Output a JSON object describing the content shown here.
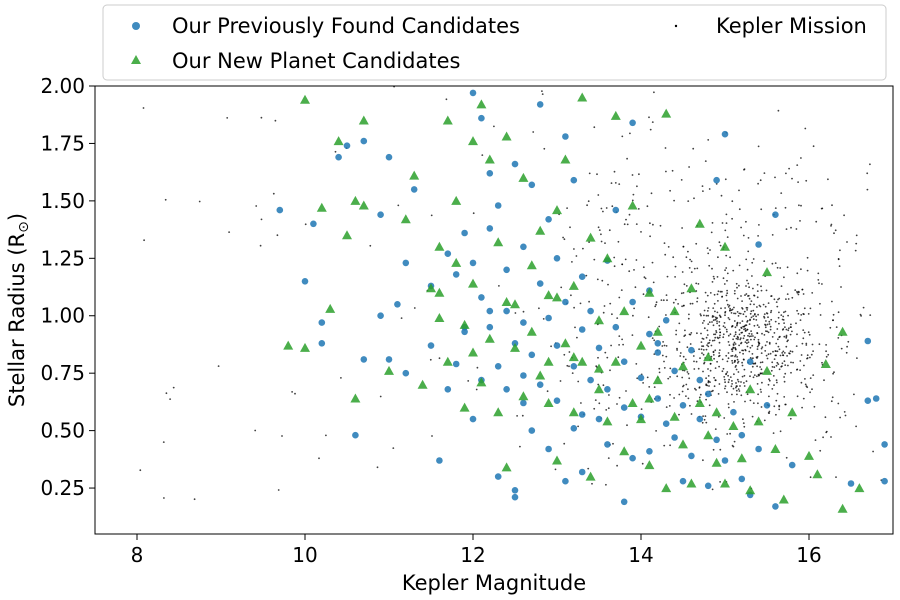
{
  "chart_data": {
    "type": "scatter",
    "xlabel": "Kepler Magnitude",
    "ylabel": "Stellar Radius (R",
    "ylabel_symbol": "⊙",
    "ylabel_close": ")",
    "xlim": [
      7.5,
      17
    ],
    "ylim": [
      0.05,
      2.0
    ],
    "xticks": [
      8,
      10,
      12,
      14,
      16
    ],
    "yticks": [
      0.25,
      0.5,
      0.75,
      1.0,
      1.25,
      1.5,
      1.75,
      2.0
    ],
    "ytick_labels": [
      "0.25",
      "0.50",
      "0.75",
      "1.00",
      "1.25",
      "1.50",
      "1.75",
      "2.00"
    ],
    "legend_position": "top",
    "series": [
      {
        "name": "Our Previously Found Candidates",
        "marker": "circle",
        "color": "#1f77b4",
        "points": [
          [
            9.7,
            1.46
          ],
          [
            10.0,
            1.15
          ],
          [
            10.1,
            1.4
          ],
          [
            10.2,
            0.97
          ],
          [
            10.2,
            0.88
          ],
          [
            10.4,
            1.69
          ],
          [
            10.5,
            1.74
          ],
          [
            10.6,
            0.48
          ],
          [
            10.7,
            0.81
          ],
          [
            10.7,
            1.76
          ],
          [
            10.9,
            1.44
          ],
          [
            10.9,
            1.0
          ],
          [
            11.0,
            0.81
          ],
          [
            11.0,
            1.69
          ],
          [
            11.1,
            1.05
          ],
          [
            11.2,
            1.23
          ],
          [
            11.2,
            0.75
          ],
          [
            11.3,
            1.55
          ],
          [
            11.5,
            1.13
          ],
          [
            11.5,
            0.87
          ],
          [
            11.6,
            0.37
          ],
          [
            11.7,
            1.27
          ],
          [
            11.7,
            0.68
          ],
          [
            11.8,
            1.18
          ],
          [
            11.8,
            0.79
          ],
          [
            11.9,
            0.93
          ],
          [
            11.9,
            1.36
          ],
          [
            12.0,
            1.97
          ],
          [
            12.0,
            1.23
          ],
          [
            12.0,
            0.55
          ],
          [
            12.1,
            1.86
          ],
          [
            12.1,
            1.08
          ],
          [
            12.1,
            0.72
          ],
          [
            12.2,
            1.62
          ],
          [
            12.2,
            1.38
          ],
          [
            12.2,
            0.95
          ],
          [
            12.3,
            0.3
          ],
          [
            12.3,
            0.78
          ],
          [
            12.3,
            1.48
          ],
          [
            12.4,
            1.2
          ],
          [
            12.4,
            0.68
          ],
          [
            12.4,
            1.02
          ],
          [
            12.5,
            0.24
          ],
          [
            12.5,
            1.66
          ],
          [
            12.5,
            0.88
          ],
          [
            12.6,
            1.3
          ],
          [
            12.6,
            0.62
          ],
          [
            12.6,
            0.97
          ],
          [
            12.7,
            1.57
          ],
          [
            12.7,
            0.5
          ],
          [
            12.7,
            0.83
          ],
          [
            12.8,
            1.92
          ],
          [
            12.8,
            1.14
          ],
          [
            12.8,
            0.7
          ],
          [
            12.9,
            0.42
          ],
          [
            12.9,
            0.99
          ],
          [
            12.9,
            1.42
          ],
          [
            13.0,
            1.25
          ],
          [
            13.0,
            0.87
          ],
          [
            13.0,
            0.63
          ],
          [
            13.1,
            1.78
          ],
          [
            13.1,
            0.28
          ],
          [
            13.1,
            1.06
          ],
          [
            13.2,
            0.78
          ],
          [
            13.2,
            1.59
          ],
          [
            13.2,
            0.51
          ],
          [
            13.3,
            0.94
          ],
          [
            13.3,
            1.17
          ],
          [
            13.3,
            0.32
          ],
          [
            13.4,
            0.72
          ],
          [
            13.4,
            1.02
          ],
          [
            13.5,
            0.55
          ],
          [
            13.5,
            0.86
          ],
          [
            13.6,
            1.24
          ],
          [
            13.6,
            0.44
          ],
          [
            13.6,
            0.68
          ],
          [
            13.7,
            0.95
          ],
          [
            13.7,
            1.46
          ],
          [
            13.8,
            0.6
          ],
          [
            13.8,
            0.8
          ],
          [
            13.8,
            0.19
          ],
          [
            13.9,
            1.84
          ],
          [
            13.9,
            1.06
          ],
          [
            13.9,
            0.38
          ],
          [
            14.0,
            0.73
          ],
          [
            14.0,
            0.56
          ],
          [
            14.1,
            0.92
          ],
          [
            14.1,
            1.11
          ],
          [
            14.1,
            0.41
          ],
          [
            14.2,
            0.64
          ],
          [
            14.2,
            0.84
          ],
          [
            14.3,
            0.53
          ],
          [
            14.3,
            0.98
          ],
          [
            14.4,
            0.47
          ],
          [
            14.4,
            0.76
          ],
          [
            14.5,
            0.28
          ],
          [
            14.5,
            0.61
          ],
          [
            14.6,
            0.85
          ],
          [
            14.6,
            0.39
          ],
          [
            14.7,
            0.72
          ],
          [
            14.7,
            0.55
          ],
          [
            14.8,
            0.26
          ],
          [
            14.8,
            0.66
          ],
          [
            14.9,
            0.46
          ],
          [
            14.9,
            1.59
          ],
          [
            15.0,
            0.37
          ],
          [
            15.0,
            1.79
          ],
          [
            15.1,
            0.58
          ],
          [
            15.2,
            0.29
          ],
          [
            15.2,
            0.48
          ],
          [
            15.3,
            0.8
          ],
          [
            15.3,
            0.22
          ],
          [
            15.4,
            1.31
          ],
          [
            15.4,
            0.42
          ],
          [
            15.5,
            0.61
          ],
          [
            15.6,
            0.17
          ],
          [
            15.6,
            1.44
          ],
          [
            15.8,
            0.35
          ],
          [
            16.5,
            0.27
          ],
          [
            16.7,
            0.89
          ],
          [
            16.8,
            0.64
          ],
          [
            16.9,
            0.44
          ],
          [
            16.9,
            0.28
          ],
          [
            16.7,
            0.63
          ],
          [
            12.5,
            0.21
          ],
          [
            11.9,
            0.95
          ],
          [
            12.2,
            1.02
          ],
          [
            12.6,
            0.74
          ],
          [
            13.3,
            0.57
          ],
          [
            14.2,
            0.88
          ]
        ]
      },
      {
        "name": "Our New Planet Candidates",
        "marker": "triangle",
        "color": "#2ca02c",
        "points": [
          [
            9.8,
            0.87
          ],
          [
            10.0,
            1.94
          ],
          [
            10.0,
            0.86
          ],
          [
            10.2,
            1.47
          ],
          [
            10.3,
            1.03
          ],
          [
            10.4,
            1.76
          ],
          [
            10.5,
            1.35
          ],
          [
            10.6,
            1.5
          ],
          [
            10.6,
            0.64
          ],
          [
            10.7,
            1.85
          ],
          [
            10.7,
            1.48
          ],
          [
            11.0,
            0.76
          ],
          [
            11.2,
            1.42
          ],
          [
            11.3,
            1.61
          ],
          [
            11.4,
            0.7
          ],
          [
            11.5,
            1.12
          ],
          [
            11.6,
            0.99
          ],
          [
            11.6,
            1.3
          ],
          [
            11.7,
            1.85
          ],
          [
            11.7,
            0.8
          ],
          [
            11.8,
            1.5
          ],
          [
            11.8,
            1.23
          ],
          [
            11.9,
            0.6
          ],
          [
            11.9,
            0.96
          ],
          [
            12.0,
            1.76
          ],
          [
            12.0,
            1.14
          ],
          [
            12.1,
            1.92
          ],
          [
            12.1,
            0.71
          ],
          [
            12.2,
            1.68
          ],
          [
            12.2,
            0.9
          ],
          [
            12.3,
            1.32
          ],
          [
            12.3,
            0.58
          ],
          [
            12.4,
            1.78
          ],
          [
            12.4,
            0.34
          ],
          [
            12.5,
            1.05
          ],
          [
            12.5,
            0.86
          ],
          [
            12.6,
            1.6
          ],
          [
            12.6,
            0.65
          ],
          [
            12.7,
            1.22
          ],
          [
            12.7,
            0.93
          ],
          [
            12.8,
            1.37
          ],
          [
            12.8,
            0.74
          ],
          [
            12.9,
            1.09
          ],
          [
            12.9,
            0.8
          ],
          [
            13.0,
            1.46
          ],
          [
            13.0,
            0.37
          ],
          [
            13.1,
            1.68
          ],
          [
            13.1,
            0.88
          ],
          [
            13.2,
            1.13
          ],
          [
            13.2,
            0.58
          ],
          [
            13.3,
            1.95
          ],
          [
            13.3,
            0.8
          ],
          [
            13.4,
            1.34
          ],
          [
            13.4,
            0.3
          ],
          [
            13.5,
            0.98
          ],
          [
            13.5,
            0.68
          ],
          [
            13.6,
            1.25
          ],
          [
            13.6,
            0.54
          ],
          [
            13.7,
            1.87
          ],
          [
            13.7,
            0.8
          ],
          [
            13.8,
            1.02
          ],
          [
            13.8,
            0.41
          ],
          [
            13.9,
            1.48
          ],
          [
            13.9,
            0.62
          ],
          [
            14.0,
            0.87
          ],
          [
            14.0,
            0.55
          ],
          [
            14.1,
            1.1
          ],
          [
            14.1,
            0.35
          ],
          [
            14.2,
            0.72
          ],
          [
            14.2,
            0.93
          ],
          [
            14.3,
            0.25
          ],
          [
            14.3,
            1.88
          ],
          [
            14.4,
            0.56
          ],
          [
            14.4,
            1.02
          ],
          [
            14.5,
            0.78
          ],
          [
            14.5,
            0.44
          ],
          [
            14.6,
            1.12
          ],
          [
            14.6,
            0.27
          ],
          [
            14.7,
            0.62
          ],
          [
            14.7,
            1.4
          ],
          [
            14.8,
            0.48
          ],
          [
            14.8,
            0.82
          ],
          [
            14.9,
            0.36
          ],
          [
            14.9,
            0.58
          ],
          [
            15.0,
            0.27
          ],
          [
            15.0,
            1.3
          ],
          [
            15.1,
            0.52
          ],
          [
            15.2,
            0.38
          ],
          [
            15.3,
            0.68
          ],
          [
            15.3,
            0.24
          ],
          [
            15.4,
            0.54
          ],
          [
            15.5,
            0.76
          ],
          [
            15.5,
            1.19
          ],
          [
            15.6,
            0.42
          ],
          [
            15.7,
            0.2
          ],
          [
            15.8,
            0.58
          ],
          [
            16.0,
            0.39
          ],
          [
            16.1,
            0.31
          ],
          [
            16.2,
            0.79
          ],
          [
            16.4,
            0.93
          ],
          [
            16.4,
            0.16
          ],
          [
            16.6,
            0.25
          ],
          [
            13.2,
            0.82
          ],
          [
            12.9,
            0.62
          ],
          [
            13.0,
            1.08
          ],
          [
            14.1,
            0.64
          ],
          [
            12.4,
            1.06
          ],
          [
            12.0,
            0.84
          ],
          [
            11.6,
            1.1
          ],
          [
            13.5,
            0.77
          ]
        ]
      },
      {
        "name": "Kepler Mission",
        "marker": "dot",
        "color": "#000000",
        "n_points": 1200,
        "cluster_center": [
          15.2,
          0.88
        ]
      }
    ]
  }
}
